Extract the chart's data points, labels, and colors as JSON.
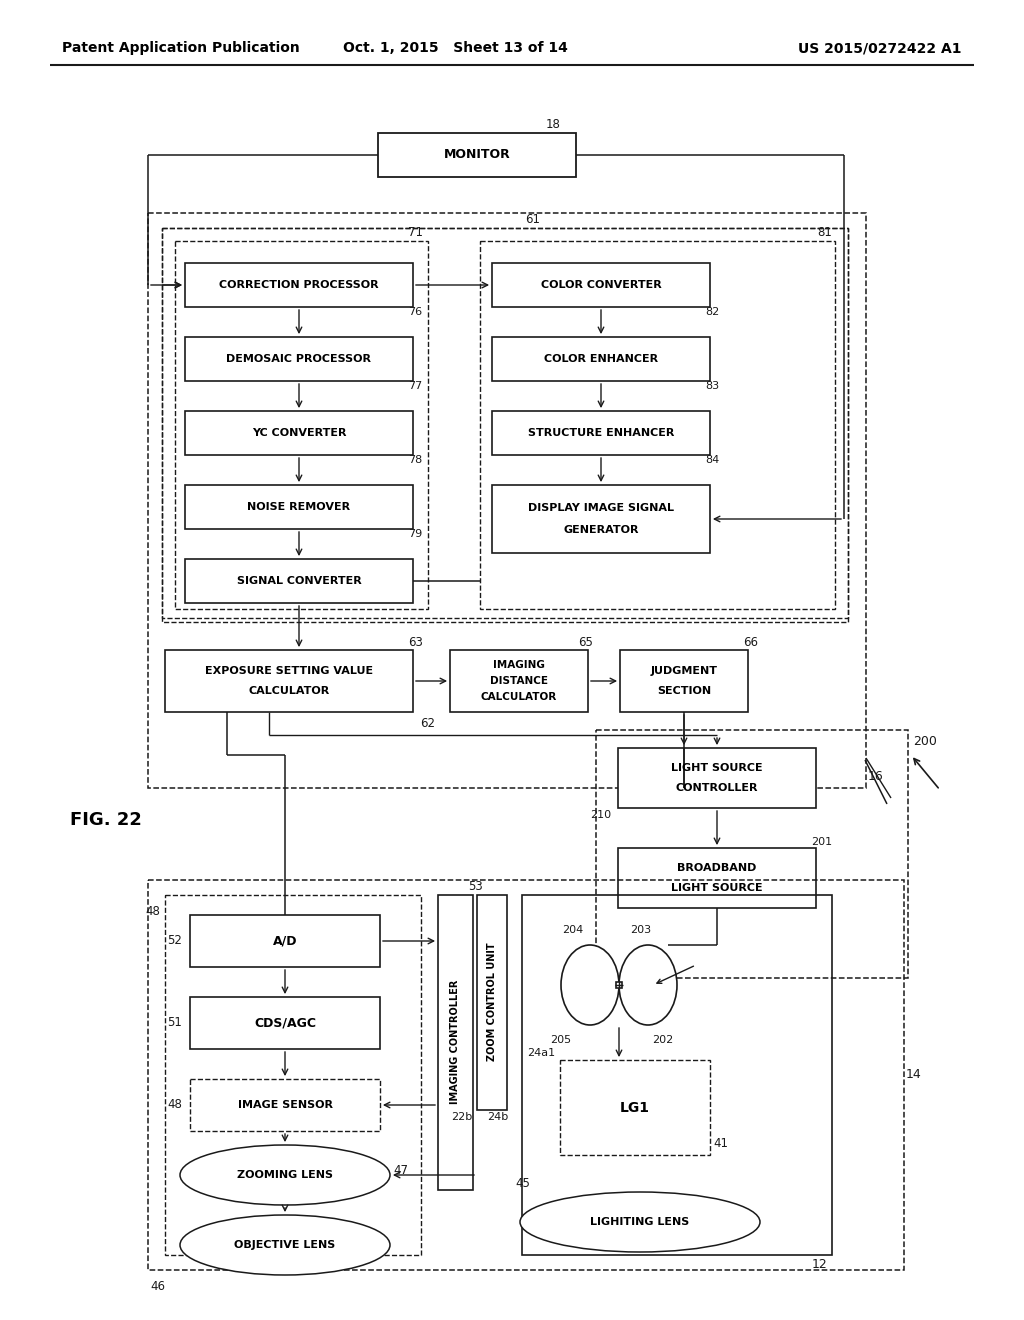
{
  "bg": "#ffffff",
  "lc": "#1a1a1a",
  "header_left": "Patent Application Publication",
  "header_mid": "Oct. 1, 2015   Sheet 13 of 14",
  "header_right": "US 2015/0272422 A1",
  "fig_label": "FIG. 22"
}
